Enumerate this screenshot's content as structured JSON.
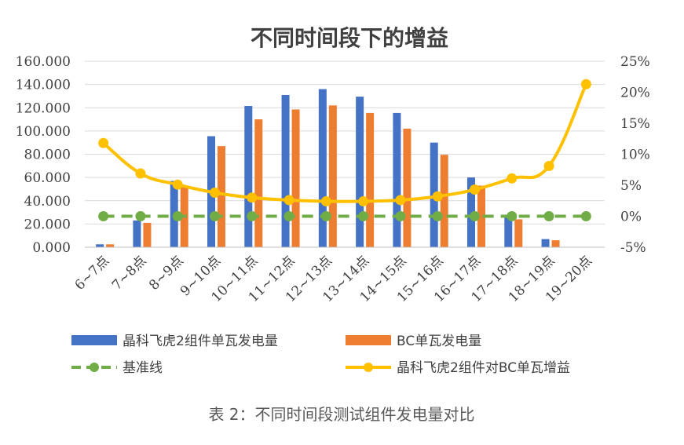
{
  "caption": "表 2：不同时间段测试组件发电量对比",
  "chart_data": {
    "type": "bar",
    "title": "不同时间段下的增益",
    "categories": [
      "6~7点",
      "7~8点",
      "8~9点",
      "9~10点",
      "10~11点",
      "11~12点",
      "12~13点",
      "13~14点",
      "14~15点",
      "15~16点",
      "16~17点",
      "17~18点",
      "18~19点",
      "19~20点"
    ],
    "series": [
      {
        "name": "晶科飞虎2组件单瓦发电量",
        "type": "bar",
        "axis": "left",
        "color": "#4472C4",
        "values": [
          2.5,
          23,
          57,
          95.5,
          121.5,
          131,
          136,
          129.5,
          115.5,
          90,
          60,
          27.5,
          7,
          0
        ]
      },
      {
        "name": "BC单瓦发电量",
        "type": "bar",
        "axis": "left",
        "color": "#ED7D31",
        "values": [
          2.5,
          21,
          52,
          87,
          110,
          118.5,
          122,
          115.5,
          102,
          79.5,
          53,
          24,
          6,
          0
        ]
      },
      {
        "name": "基准线",
        "type": "line",
        "axis": "right",
        "color": "#70AD47",
        "dashed": true,
        "values": [
          0,
          0,
          0,
          0,
          0,
          0,
          0,
          0,
          0,
          0,
          0,
          0,
          0,
          0
        ]
      },
      {
        "name": "晶科飞虎2组件对BC单瓦增益",
        "type": "line",
        "axis": "right",
        "color": "#FFC000",
        "values": [
          0.118,
          0.069,
          0.051,
          0.038,
          0.03,
          0.026,
          0.024,
          0.024,
          0.026,
          0.032,
          0.043,
          0.061,
          0.081,
          0.213
        ]
      }
    ],
    "y_left": {
      "min": 0,
      "max": 160,
      "ticks": [
        0,
        20,
        40,
        60,
        80,
        100,
        120,
        140,
        160
      ],
      "tick_labels": [
        "0.000",
        "20.000",
        "40.000",
        "60.000",
        "80.000",
        "100.000",
        "120.000",
        "140.000",
        "160.000"
      ]
    },
    "y_right": {
      "min": -0.05,
      "max": 0.25,
      "ticks": [
        -0.05,
        0,
        0.05,
        0.1,
        0.15,
        0.2,
        0.25
      ],
      "tick_labels": [
        "-5%",
        "0%",
        "5%",
        "10%",
        "15%",
        "20%",
        "25%"
      ]
    },
    "grid": true,
    "legend": "bottom"
  }
}
